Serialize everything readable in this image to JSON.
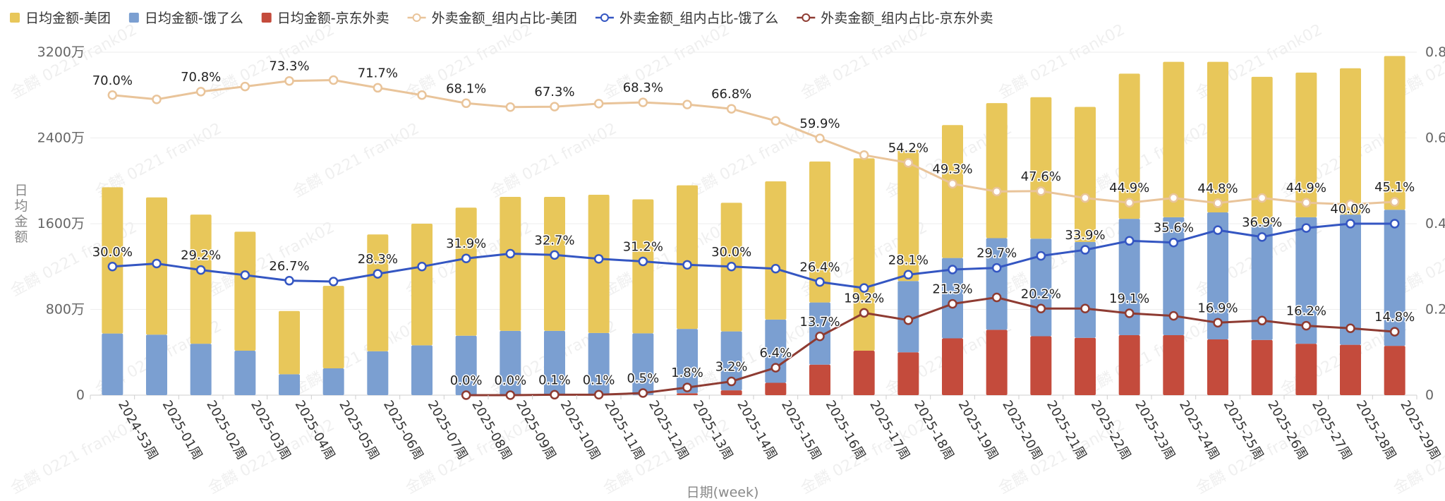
{
  "chart_data": {
    "type": "bar",
    "stacked": true,
    "watermark": "金麟 0221 frank02",
    "xlabel": "日期(week)",
    "ylabel": "日均金额",
    "ylim": [
      0,
      3200
    ],
    "y_ticks": [
      "0",
      "800万",
      "1600万",
      "2400万",
      "3200万"
    ],
    "y_tick_values": [
      0,
      800,
      1600,
      2400,
      3200
    ],
    "y2lim": [
      0,
      0.8
    ],
    "y2_ticks": [
      "0",
      "0.2",
      "0.4",
      "0.6",
      "0.8"
    ],
    "y2_tick_values": [
      0,
      0.2,
      0.4,
      0.6,
      0.8
    ],
    "grid": true,
    "legend_position": "top-left",
    "categories": [
      "2024-53周",
      "2025-01周",
      "2025-02周",
      "2025-03周",
      "2025-04周",
      "2025-05周",
      "2025-06周",
      "2025-07周",
      "2025-08周",
      "2025-09周",
      "2025-10周",
      "2025-11周",
      "2025-12周",
      "2025-13周",
      "2025-14周",
      "2025-15周",
      "2025-16周",
      "2025-17周",
      "2025-18周",
      "2025-19周",
      "2025-20周",
      "2025-21周",
      "2025-22周",
      "2025-23周",
      "2025-24周",
      "2025-25周",
      "2025-26周",
      "2025-27周",
      "2025-28周",
      "2025-29周"
    ],
    "bar_series": [
      {
        "name": "日均金额-京东外卖",
        "color": "#c44b3c",
        "values": [
          0,
          0,
          0,
          0,
          0,
          0,
          0,
          0,
          0,
          0,
          0,
          0,
          2,
          18,
          45,
          115,
          285,
          415,
          400,
          530,
          610,
          550,
          535,
          560,
          560,
          520,
          515,
          480,
          470,
          460
        ]
      },
      {
        "name": "日均金额-饿了么",
        "color": "#7b9fd1",
        "values": [
          575,
          565,
          480,
          415,
          195,
          250,
          410,
          465,
          555,
          600,
          600,
          580,
          575,
          600,
          550,
          590,
          580,
          0,
          665,
          750,
          855,
          910,
          895,
          1085,
          1100,
          1185,
          1080,
          1180,
          1215,
          1270
        ]
      },
      {
        "name": "日均金额-美团",
        "color": "#e8c75a",
        "values": [
          1365,
          1280,
          1205,
          1110,
          590,
          770,
          1090,
          1135,
          1195,
          1250,
          1250,
          1290,
          1250,
          1340,
          1200,
          1290,
          1315,
          1795,
          1225,
          1240,
          1260,
          1320,
          1260,
          1355,
          1450,
          1405,
          1375,
          1350,
          1365,
          1435
        ]
      }
    ],
    "line_series": [
      {
        "name": "外卖金额_组内占比-美团",
        "color": "#e9c49a",
        "values": [
          0.7,
          0.69,
          0.708,
          0.72,
          0.733,
          0.735,
          0.717,
          0.7,
          0.681,
          0.672,
          0.673,
          0.68,
          0.683,
          0.678,
          0.668,
          0.64,
          0.599,
          0.56,
          0.542,
          0.493,
          0.475,
          0.476,
          0.46,
          0.449,
          0.46,
          0.448,
          0.46,
          0.449,
          0.445,
          0.451
        ]
      },
      {
        "name": "外卖金额_组内占比-饿了么",
        "color": "#3456c2",
        "values": [
          0.3,
          0.307,
          0.292,
          0.28,
          0.267,
          0.265,
          0.283,
          0.3,
          0.319,
          0.33,
          0.327,
          0.318,
          0.312,
          0.304,
          0.3,
          0.295,
          0.264,
          0.25,
          0.281,
          0.293,
          0.297,
          0.325,
          0.339,
          0.36,
          0.356,
          0.385,
          0.369,
          0.39,
          0.4,
          0.4
        ]
      },
      {
        "name": "外卖金额_组内占比-京东外卖",
        "color": "#8e3b32",
        "values": [
          null,
          null,
          null,
          null,
          null,
          null,
          null,
          null,
          0.0,
          0.0,
          0.001,
          0.001,
          0.005,
          0.018,
          0.032,
          0.064,
          0.137,
          0.192,
          0.175,
          0.213,
          0.228,
          0.202,
          0.202,
          0.191,
          0.185,
          0.169,
          0.174,
          0.162,
          0.156,
          0.148
        ]
      }
    ],
    "data_labels": {
      "美团": [
        [
          "0",
          "70.0%"
        ],
        [
          "2",
          "70.8%"
        ],
        [
          "4",
          "73.3%"
        ],
        [
          "6",
          "71.7%"
        ],
        [
          "8",
          "68.1%"
        ],
        [
          "10",
          "67.3%"
        ],
        [
          "12",
          "68.3%"
        ],
        [
          "14",
          "66.8%"
        ],
        [
          "16",
          "59.9%"
        ],
        [
          "18",
          "54.2%"
        ],
        [
          "19",
          "49.3%"
        ],
        [
          "21",
          "47.6%"
        ],
        [
          "23",
          "44.9%"
        ],
        [
          "25",
          "44.8%"
        ],
        [
          "27",
          "44.9%"
        ],
        [
          "29",
          "45.1%"
        ]
      ],
      "饿了么": [
        [
          "0",
          "30.0%"
        ],
        [
          "2",
          "29.2%"
        ],
        [
          "4",
          "26.7%"
        ],
        [
          "6",
          "28.3%"
        ],
        [
          "8",
          "31.9%"
        ],
        [
          "10",
          "32.7%"
        ],
        [
          "12",
          "31.2%"
        ],
        [
          "14",
          "30.0%"
        ],
        [
          "16",
          "26.4%"
        ],
        [
          "18",
          "28.1%"
        ],
        [
          "20",
          "29.7%"
        ],
        [
          "22",
          "33.9%"
        ],
        [
          "24",
          "35.6%"
        ],
        [
          "26",
          "36.9%"
        ],
        [
          "28",
          "40.0%"
        ]
      ],
      "京东外卖": [
        [
          "8",
          "0.0%"
        ],
        [
          "9",
          "0.0%"
        ],
        [
          "10",
          "0.1%"
        ],
        [
          "11",
          "0.1%"
        ],
        [
          "12",
          "0.5%"
        ],
        [
          "13",
          "1.8%"
        ],
        [
          "14",
          "3.2%"
        ],
        [
          "15",
          "6.4%"
        ],
        [
          "16",
          "13.7%"
        ],
        [
          "17",
          "19.2%"
        ],
        [
          "19",
          "21.3%"
        ],
        [
          "21",
          "20.2%"
        ],
        [
          "23",
          "19.1%"
        ],
        [
          "25",
          "16.9%"
        ],
        [
          "27",
          "16.2%"
        ],
        [
          "29",
          "14.8%"
        ]
      ]
    }
  }
}
